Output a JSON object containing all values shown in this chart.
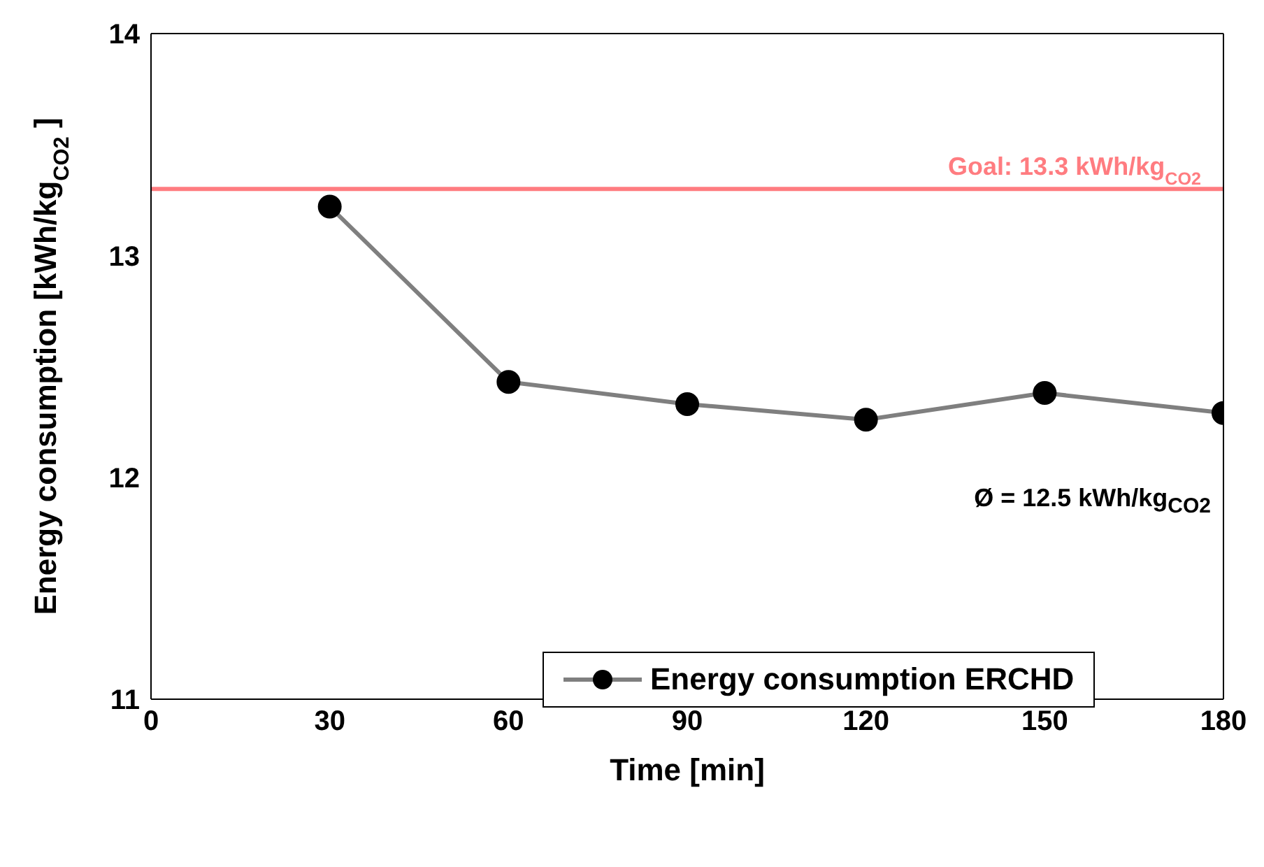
{
  "chart_data": {
    "type": "line",
    "xlabel": "Time [min]",
    "ylabel": "Energy consumption [kWh/kg$_{CO2}$]",
    "x": [
      30,
      60,
      90,
      120,
      150,
      180
    ],
    "series": [
      {
        "name": "Energy consumption ERCHD",
        "color": "#7f7f7f",
        "values": [
          13.22,
          12.43,
          12.33,
          12.26,
          12.38,
          12.29
        ]
      }
    ],
    "xlim": [
      0,
      180
    ],
    "xticks": [
      0,
      30,
      60,
      90,
      120,
      150,
      180
    ],
    "ylim": [
      11,
      14
    ],
    "yticks": [
      11,
      12,
      13,
      14
    ],
    "ref_lines": [
      {
        "axis": "y",
        "value": 13.3,
        "label": "Goal: 13.3 kWh/kg$_{CO2}$",
        "color": "#ff7c80"
      }
    ],
    "annotations": [
      "Ø = 12.5 kWh/kg$_{CO2}$"
    ],
    "legend": "bottom right",
    "marker": "circle",
    "line_style": "solid",
    "grid": false
  }
}
